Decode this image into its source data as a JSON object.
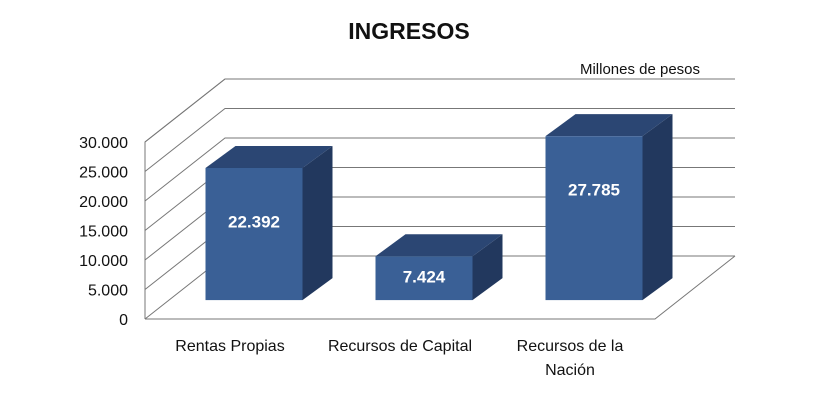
{
  "chart_data": {
    "type": "bar3d",
    "title": "INGRESOS",
    "unit_label": "Millones de pesos",
    "categories": [
      "Rentas Propias",
      "Recursos de Capital",
      "Recursos de la Nación"
    ],
    "values": [
      22392,
      7424,
      27785
    ],
    "value_labels": [
      "22.392",
      "7.424",
      "27.785"
    ],
    "color": "#3a6096",
    "ylim": [
      0,
      30000
    ],
    "yticks": [
      0,
      {
        "value": 5000,
        "label": "5.000"
      },
      {
        "value": 10000,
        "label": "10.000"
      },
      {
        "value": 15000,
        "label": "15.000"
      },
      {
        "value": 20000,
        "label": "20.000"
      },
      {
        "value": 25000,
        "label": "25.000"
      },
      {
        "value": 30000,
        "label": "30.000"
      }
    ],
    "grid": true
  }
}
